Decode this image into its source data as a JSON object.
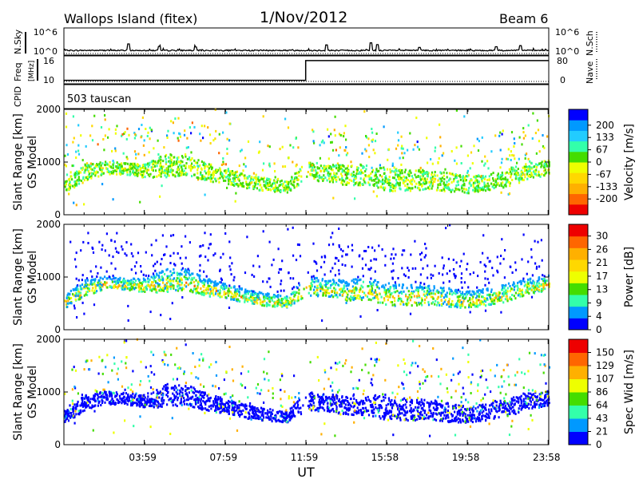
{
  "header": {
    "station": "Wallops Island  (fitex)",
    "date": "1/Nov/2012",
    "beam": "Beam 6"
  },
  "colors": {
    "velocity_scale": [
      "#ee0000",
      "#ff6600",
      "#ffb000",
      "#ffd800",
      "#eeff00",
      "#44dd00",
      "#33ffaa",
      "#22ccff",
      "#0099ff",
      "#0000ff"
    ],
    "power_scale": [
      "#0000ff",
      "#0099ff",
      "#33ffaa",
      "#44dd00",
      "#eeff00",
      "#ffd800",
      "#ffb000",
      "#ff6600",
      "#ee0000"
    ],
    "width_scale": [
      "#0000ff",
      "#0099ff",
      "#33ffaa",
      "#44dd00",
      "#eeff00",
      "#ffb000",
      "#ff6600",
      "#ee0000"
    ]
  },
  "chart_data": [
    {
      "type": "line",
      "name": "noise",
      "left_label": "N.Sky",
      "right_label": "N.Sch",
      "left_ticks": [
        "10^6",
        "10^0"
      ],
      "right_ticks": [
        "10^6",
        "10^0"
      ],
      "ylim_log10": [
        0,
        6
      ],
      "spikes": [
        {
          "x": 3.2,
          "y": 2.3
        },
        {
          "x": 4.7,
          "y": 1.6
        },
        {
          "x": 6.5,
          "y": 1.4
        },
        {
          "x": 13.0,
          "y": 2.0
        },
        {
          "x": 15.2,
          "y": 2.6
        },
        {
          "x": 15.5,
          "y": 2.1
        },
        {
          "x": 17.6,
          "y": 1.3
        },
        {
          "x": 21.4,
          "y": 1.5
        },
        {
          "x": 22.6,
          "y": 1.8
        }
      ]
    },
    {
      "type": "line",
      "name": "freq_nave",
      "left_label": "Freq",
      "left_unit": "[MHz]",
      "right_label": "Nave",
      "left_ticks": [
        "16",
        "10"
      ],
      "right_ticks": [
        "80",
        "0"
      ],
      "freq_x": [
        0,
        11.97,
        11.97,
        24
      ],
      "freq_y": [
        10.3,
        10.3,
        15.8,
        15.8
      ],
      "ylim": [
        10,
        16
      ]
    },
    {
      "type": "table",
      "name": "cpid",
      "label": "CPID",
      "text": "503 tauscan"
    },
    {
      "type": "heatmap",
      "name": "velocity",
      "ylabel": "Slant Range [km]",
      "ylabel2": "GS Model",
      "yticks": [
        "2000",
        "1000",
        "0"
      ],
      "ylim": [
        0,
        2000
      ],
      "colorbar_label": "Velocity [m/s]",
      "colorbar_ticks": [
        "200",
        "133",
        "67",
        "0",
        "-67",
        "-133",
        "-200"
      ],
      "clim": [
        -250,
        250
      ]
    },
    {
      "type": "heatmap",
      "name": "power",
      "ylabel": "Slant Range [km]",
      "ylabel2": "GS Model",
      "yticks": [
        "2000",
        "1000",
        "0"
      ],
      "ylim": [
        0,
        2000
      ],
      "colorbar_label": "Power [dB]",
      "colorbar_ticks": [
        "30",
        "26",
        "21",
        "17",
        "13",
        "9",
        "4",
        "0"
      ],
      "clim": [
        0,
        35
      ]
    },
    {
      "type": "heatmap",
      "name": "spectral_width",
      "ylabel": "Slant Range [km]",
      "ylabel2": "GS Model",
      "yticks": [
        "2000",
        "1000",
        "0"
      ],
      "ylim": [
        0,
        2000
      ],
      "colorbar_label": "Spec Wid [m/s]",
      "colorbar_ticks": [
        "150",
        "129",
        "107",
        "86",
        "64",
        "43",
        "21",
        "0"
      ],
      "clim": [
        0,
        170
      ]
    }
  ],
  "x_axis": {
    "label": "UT",
    "ticks": [
      "03:59",
      "07:59",
      "11:59",
      "15:58",
      "19:58",
      "23:58"
    ],
    "tick_hours": [
      3.98,
      7.98,
      11.98,
      15.97,
      19.97,
      23.97
    ],
    "xlim_hours": [
      0,
      24
    ]
  },
  "echo_band": {
    "description_hours": [
      0,
      1,
      2,
      3,
      4,
      5,
      6,
      7,
      8,
      9,
      10,
      11,
      12,
      13,
      14,
      15,
      16,
      17,
      18,
      19,
      20,
      21,
      22,
      23,
      24
    ],
    "center_km": [
      520,
      780,
      880,
      860,
      830,
      920,
      940,
      800,
      720,
      620,
      560,
      520,
      820,
      780,
      740,
      760,
      660,
      640,
      660,
      600,
      560,
      620,
      700,
      820,
      880
    ],
    "half_width_km": [
      120,
      150,
      120,
      110,
      130,
      220,
      200,
      170,
      140,
      130,
      120,
      110,
      180,
      160,
      200,
      200,
      220,
      200,
      190,
      180,
      160,
      160,
      170,
      150,
      140
    ]
  }
}
